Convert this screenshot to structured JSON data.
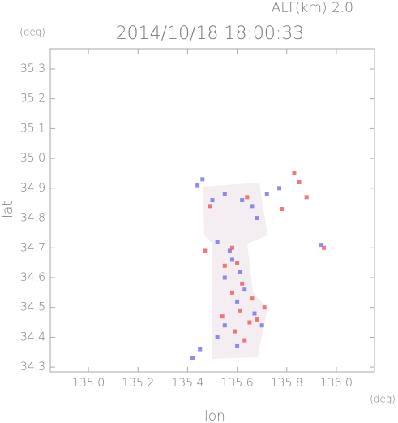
{
  "chart_data": {
    "type": "scatter",
    "title": "2014/10/18 18:00:33",
    "subtitle": "ALT(km) 2.0",
    "x_label": "lon",
    "y_label": "lat",
    "x_unit": "(deg)",
    "y_unit": "(deg)",
    "xlim": [
      134.846,
      136.154
    ],
    "ylim": [
      34.284,
      35.368
    ],
    "xticks": [
      {
        "value": 135,
        "label": "135.0"
      },
      135.2,
      135.4,
      135.6,
      135.8,
      {
        "value": 136,
        "label": "136.0"
      }
    ],
    "yticks": [
      34.3,
      34.4,
      34.5,
      34.6,
      34.7,
      34.8,
      34.9,
      {
        "value": 35,
        "label": "35.0"
      },
      35.1,
      35.2,
      35.3
    ],
    "series": [
      {
        "color": "#7070e8",
        "x": [
          135.44,
          135.46,
          135.5,
          135.55,
          135.62,
          135.66,
          135.68,
          135.72,
          135.77,
          135.52,
          135.58,
          135.61,
          135.55,
          135.63,
          135.6,
          135.67,
          135.55,
          135.52,
          135.6,
          135.42,
          135.45,
          135.7,
          135.94,
          135.57
        ],
        "y": [
          34.91,
          34.93,
          34.86,
          34.88,
          34.86,
          34.84,
          34.8,
          34.88,
          34.9,
          34.72,
          34.66,
          34.62,
          34.6,
          34.56,
          34.52,
          34.48,
          34.44,
          34.4,
          34.37,
          34.33,
          34.36,
          34.44,
          34.71,
          34.69
        ]
      },
      {
        "color": "#ee5858",
        "x": [
          135.83,
          135.85,
          135.78,
          135.64,
          135.49,
          135.47,
          135.58,
          135.6,
          135.55,
          135.62,
          135.58,
          135.66,
          135.61,
          135.68,
          135.65,
          135.59,
          135.63,
          135.54,
          135.71,
          135.95,
          135.88
        ],
        "y": [
          34.95,
          34.92,
          34.83,
          34.87,
          34.84,
          34.69,
          34.7,
          34.65,
          34.64,
          34.58,
          34.55,
          34.53,
          34.49,
          34.46,
          34.45,
          34.42,
          34.39,
          34.47,
          34.5,
          34.7,
          34.87
        ]
      }
    ]
  }
}
